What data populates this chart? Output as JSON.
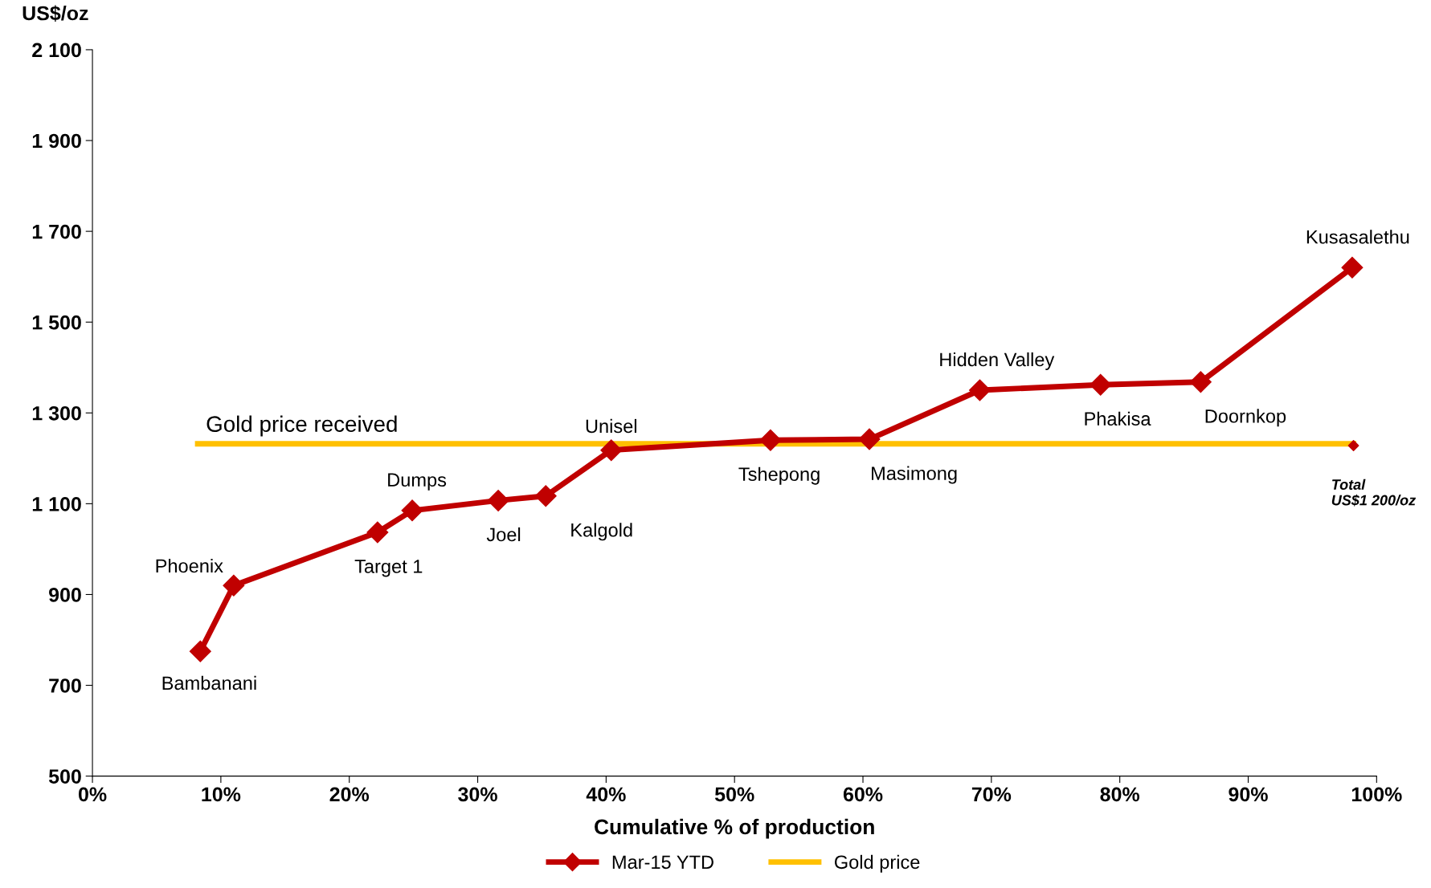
{
  "chart_data": {
    "type": "line",
    "xlabel": "Cumulative % of production",
    "ylabel": "US$/oz",
    "xlim": [
      0,
      100
    ],
    "xticks": [
      {
        "value": 0,
        "label": "0%"
      },
      {
        "value": 10,
        "label": "10%"
      },
      {
        "value": 20,
        "label": "20%"
      },
      {
        "value": 30,
        "label": "30%"
      },
      {
        "value": 40,
        "label": "40%"
      },
      {
        "value": 50,
        "label": "50%"
      },
      {
        "value": 60,
        "label": "60%"
      },
      {
        "value": 70,
        "label": "70%"
      },
      {
        "value": 80,
        "label": "80%"
      },
      {
        "value": 90,
        "label": "90%"
      },
      {
        "value": 100,
        "label": "100%"
      }
    ],
    "ylim": [
      500,
      2100
    ],
    "yticks": [
      500,
      700,
      900,
      {
        "value": 1100,
        "label": "1 100"
      },
      {
        "value": 1300,
        "label": "1 300"
      },
      {
        "value": 1500,
        "label": "1 500"
      },
      {
        "value": 1700,
        "label": "1 700"
      },
      {
        "value": 1900,
        "label": "1 900"
      },
      {
        "value": 2100,
        "label": "2 100"
      }
    ],
    "grid": false,
    "legend": "bottom",
    "marker": "diamond",
    "line_style": "solid",
    "series": [
      {
        "name": "Mar-15 YTD",
        "color": "#c00000",
        "x": [
          8.4,
          11.0,
          22.2,
          24.9,
          31.6,
          35.3,
          40.4,
          52.8,
          60.5,
          69.1,
          78.5,
          86.3,
          98.1
        ],
        "values": [
          775,
          920,
          1037,
          1085,
          1107,
          1117,
          1218,
          1240,
          1242,
          1350,
          1362,
          1368,
          1620
        ]
      },
      {
        "name": "Gold price",
        "color": "#ffc000",
        "marker": "none",
        "x": [
          8.2,
          98.2
        ],
        "values": [
          1232,
          1232
        ]
      },
      {
        "color": "#c00000",
        "type": "scatter",
        "x": [
          98.2
        ],
        "values": [
          1228
        ]
      }
    ],
    "annotations": [
      {
        "text": "Bambanani",
        "x": 8.4,
        "y": 775
      },
      {
        "text": "Phoenix",
        "x": 11.0,
        "y": 920
      },
      {
        "text": "Target 1",
        "x": 22.2,
        "y": 1037
      },
      {
        "text": "Dumps",
        "x": 24.9,
        "y": 1085
      },
      {
        "text": "Joel",
        "x": 31.6,
        "y": 1107
      },
      {
        "text": "Kalgold",
        "x": 35.3,
        "y": 1117
      },
      {
        "text": "Unisel",
        "x": 40.4,
        "y": 1218
      },
      {
        "text": "Tshepong",
        "x": 52.8,
        "y": 1240
      },
      {
        "text": "Masimong",
        "x": 60.5,
        "y": 1242
      },
      {
        "text": "Hidden Valley",
        "x": 69.1,
        "y": 1350
      },
      {
        "text": "Phakisa",
        "x": 78.5,
        "y": 1362
      },
      {
        "text": "Doornkop",
        "x": 86.3,
        "y": 1368
      },
      {
        "text": "Kusasalethu",
        "x": 98.1,
        "y": 1620
      },
      {
        "text": "Gold price received",
        "x": 9.0,
        "y": 1232
      },
      {
        "text": "Total\nUS$1 200/oz",
        "x": 98.2,
        "y": 1228
      }
    ]
  }
}
